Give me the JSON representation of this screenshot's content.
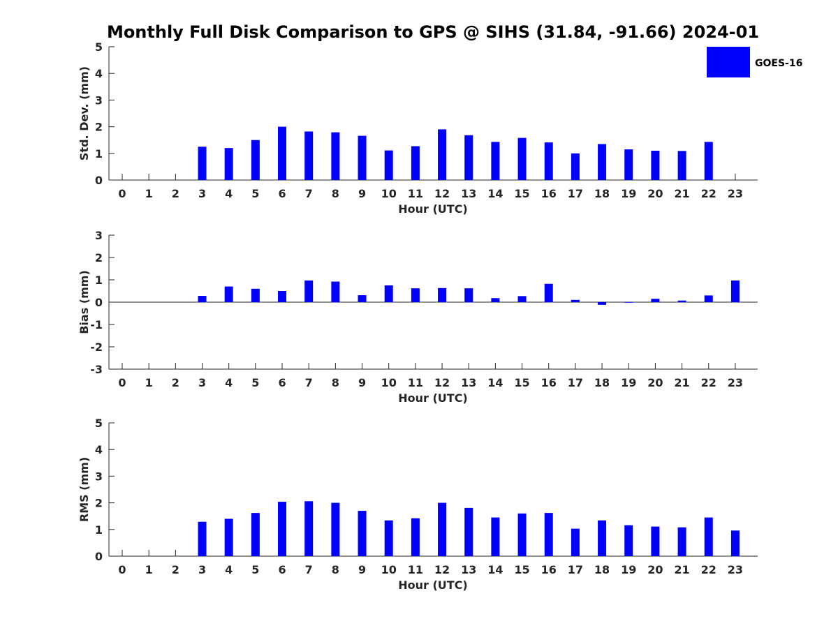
{
  "chart_data": {
    "title": "Monthly Full Disk Comparison to GPS @ SIHS (31.84, -91.66) 2024-01",
    "type": "bar",
    "legend": {
      "label": "GOES-16",
      "placement": "top-right",
      "color": "#0000ff"
    },
    "bar_color": "#0000ff",
    "panels": [
      {
        "id": "std",
        "ylabel": "Std. Dev. (mm)",
        "xlabel": "Hour (UTC)",
        "ylim": [
          0,
          5
        ],
        "yticks": [
          0,
          1,
          2,
          3,
          4,
          5
        ],
        "x": [
          0,
          1,
          2,
          3,
          4,
          5,
          6,
          7,
          8,
          9,
          10,
          11,
          12,
          13,
          14,
          15,
          16,
          17,
          18,
          19,
          20,
          21,
          22,
          23
        ],
        "values": [
          null,
          null,
          null,
          1.25,
          1.2,
          1.5,
          2.0,
          1.82,
          1.79,
          1.66,
          1.11,
          1.27,
          1.9,
          1.68,
          1.43,
          1.58,
          1.41,
          1.0,
          1.35,
          1.15,
          1.1,
          1.09,
          1.43,
          null
        ]
      },
      {
        "id": "bias",
        "ylabel": "Bias (mm)",
        "xlabel": "Hour (UTC)",
        "ylim": [
          -3,
          3
        ],
        "yticks": [
          -3,
          -2,
          -1,
          0,
          1,
          2,
          3
        ],
        "x": [
          0,
          1,
          2,
          3,
          4,
          5,
          6,
          7,
          8,
          9,
          10,
          11,
          12,
          13,
          14,
          15,
          16,
          17,
          18,
          19,
          20,
          21,
          22,
          23
        ],
        "values": [
          null,
          null,
          null,
          0.28,
          0.7,
          0.6,
          0.5,
          0.97,
          0.92,
          0.31,
          0.75,
          0.62,
          0.63,
          0.62,
          0.18,
          0.27,
          0.82,
          0.1,
          -0.12,
          -0.02,
          0.15,
          0.07,
          0.3,
          0.97
        ]
      },
      {
        "id": "rms",
        "ylabel": "RMS (mm)",
        "xlabel": "Hour (UTC)",
        "ylim": [
          0,
          5
        ],
        "yticks": [
          0,
          1,
          2,
          3,
          4,
          5
        ],
        "x": [
          0,
          1,
          2,
          3,
          4,
          5,
          6,
          7,
          8,
          9,
          10,
          11,
          12,
          13,
          14,
          15,
          16,
          17,
          18,
          19,
          20,
          21,
          22,
          23
        ],
        "values": [
          null,
          null,
          null,
          1.29,
          1.4,
          1.62,
          2.04,
          2.06,
          2.0,
          1.7,
          1.34,
          1.42,
          2.0,
          1.81,
          1.45,
          1.6,
          1.62,
          1.03,
          1.34,
          1.16,
          1.11,
          1.08,
          1.45,
          0.96
        ]
      }
    ]
  }
}
